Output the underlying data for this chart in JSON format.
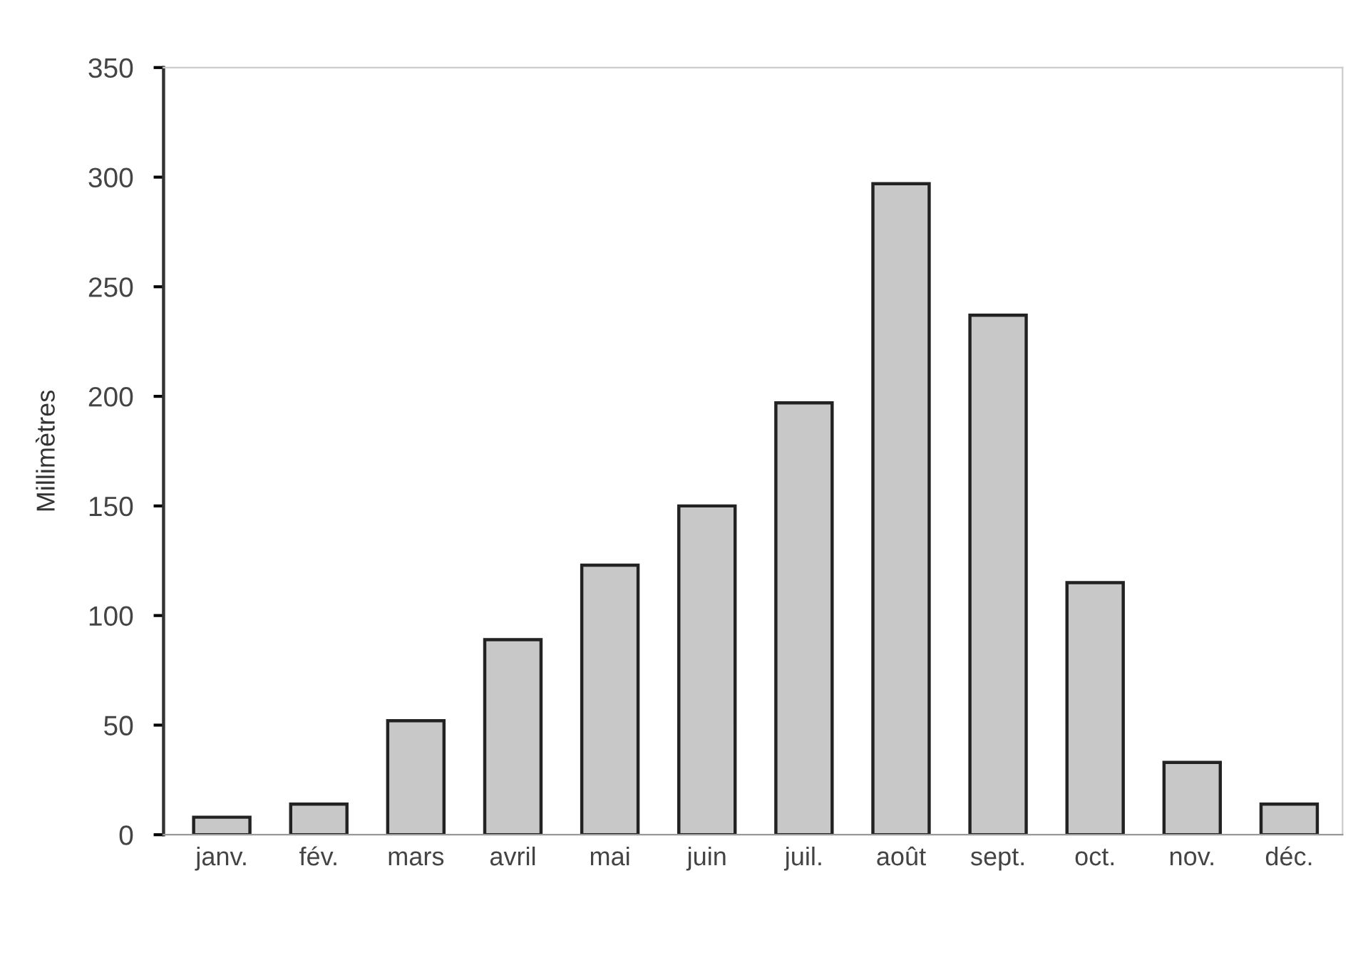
{
  "chart_data": {
    "type": "bar",
    "ylabel": "Millimètres",
    "categories": [
      "janv.",
      "fév.",
      "mars",
      "avril",
      "mai",
      "juin",
      "juil.",
      "août",
      "sept.",
      "oct.",
      "nov.",
      "déc."
    ],
    "values": [
      8,
      14,
      52,
      89,
      123,
      150,
      197,
      297,
      237,
      115,
      33,
      14
    ],
    "color": "#c8c8c8",
    "ylim": [
      0,
      350
    ],
    "yticks": [
      0,
      50,
      100,
      150,
      200,
      250,
      300,
      350
    ],
    "grid": false
  }
}
